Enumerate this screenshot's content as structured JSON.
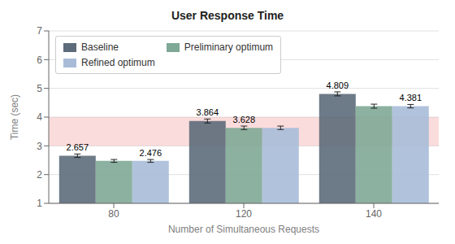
{
  "chart_data": {
    "type": "bar",
    "title": "User Response Time",
    "xlabel": "Number of Simultaneous Requests",
    "ylabel": "Time (sec)",
    "categories": [
      80,
      120,
      140
    ],
    "series": [
      {
        "name": "Baseline",
        "color": "#5d6b7a",
        "values": [
          2.657,
          3.864,
          4.809
        ],
        "errors": [
          0.06,
          0.07,
          0.07
        ],
        "value_labels": [
          "2.657",
          "3.864",
          "4.809"
        ]
      },
      {
        "name": "Preliminary optimum",
        "color": "#7fa896",
        "values": [
          2.476,
          3.628,
          4.381
        ],
        "errors": [
          0.05,
          0.06,
          0.07
        ],
        "value_labels": [
          null,
          "3.628",
          null
        ]
      },
      {
        "name": "Refined optimum",
        "color": "#a8bcd8",
        "values": [
          2.476,
          3.628,
          4.381
        ],
        "errors": [
          0.05,
          0.06,
          0.06
        ],
        "value_labels": [
          "2.476",
          null,
          "4.381"
        ]
      }
    ],
    "band": {
      "ymin": 3.0,
      "ymax": 4.0,
      "color": "#f08080"
    },
    "ylim": [
      1,
      7
    ],
    "yticks": [
      1,
      2,
      3,
      4,
      5,
      6,
      7
    ],
    "grid": true,
    "legend": "upper left",
    "data_labels": true
  }
}
